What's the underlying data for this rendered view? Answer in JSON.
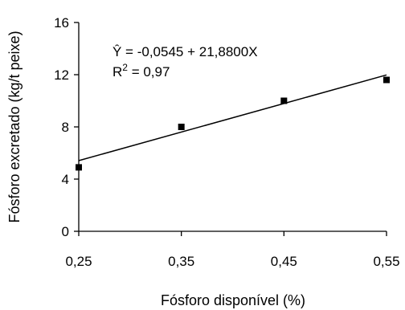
{
  "chart_data": {
    "type": "scatter",
    "xlabel": "Fósforo disponível (%)",
    "ylabel": "Fósforo excretado (kg/t peixe)",
    "xlim": [
      0.25,
      0.55
    ],
    "ylim": [
      0,
      16
    ],
    "x_ticks": [
      "0,25",
      "0,35",
      "0,45",
      "0,55"
    ],
    "y_ticks": [
      "0",
      "4",
      "8",
      "12",
      "16"
    ],
    "grid": false,
    "series": [
      {
        "x": [
          0.25,
          0.35,
          0.45,
          0.55
        ],
        "y": [
          4.9,
          8.0,
          10.0,
          11.6
        ]
      }
    ],
    "trendline": {
      "intercept": -0.0545,
      "slope": 21.88
    },
    "annotations": {
      "equation": "Ŷ = -0,0545 + 21,8800X",
      "r2_prefix": "R",
      "r2_sup": "2",
      "r2_value": " = 0,97"
    },
    "colors": {
      "axis": "#000000",
      "marker": "#000000",
      "line": "#000000"
    }
  }
}
